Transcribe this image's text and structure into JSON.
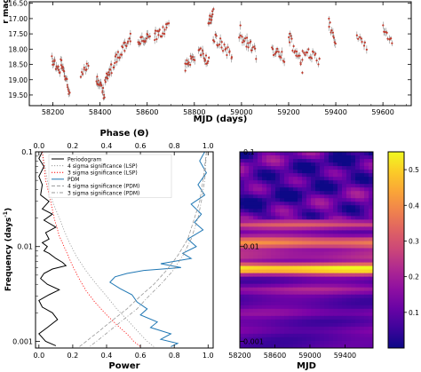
{
  "chart_data": [
    {
      "type": "scatter",
      "xlabel": "MJD (days)",
      "ylabel": "r mag",
      "xlim": [
        58100,
        59720
      ],
      "ylim": [
        19.85,
        16.45
      ],
      "y_inverted": true,
      "grid": false,
      "xticks": [
        58200,
        58400,
        58600,
        58800,
        59000,
        59200,
        59400,
        59600
      ],
      "yticks": [
        16.5,
        17.0,
        17.5,
        18.0,
        18.5,
        19.0,
        19.5
      ],
      "ytick_labels": [
        "16.50",
        "17.00",
        "17.50",
        "18.00",
        "18.50",
        "19.00",
        "19.50"
      ],
      "marker_color": "#c0392b",
      "segments": [
        {
          "x0": 58195,
          "x1": 58230,
          "n": 14,
          "y0": 18.3,
          "y1": 18.8,
          "noise": 0.35
        },
        {
          "x0": 58232,
          "x1": 58270,
          "n": 20,
          "y0": 18.4,
          "y1": 19.4,
          "noise": 0.35
        },
        {
          "x0": 58320,
          "x1": 58350,
          "n": 9,
          "y0": 18.8,
          "y1": 18.5,
          "noise": 0.25
        },
        {
          "x0": 58385,
          "x1": 58420,
          "n": 18,
          "y0": 19.0,
          "y1": 19.5,
          "noise": 0.35
        },
        {
          "x0": 58420,
          "x1": 58450,
          "n": 14,
          "y0": 19.1,
          "y1": 18.6,
          "noise": 0.4
        },
        {
          "x0": 58455,
          "x1": 58530,
          "n": 24,
          "y0": 18.5,
          "y1": 17.6,
          "noise": 0.35
        },
        {
          "x0": 58560,
          "x1": 58610,
          "n": 16,
          "y0": 17.8,
          "y1": 17.6,
          "noise": 0.3
        },
        {
          "x0": 58630,
          "x1": 58690,
          "n": 18,
          "y0": 17.6,
          "y1": 17.3,
          "noise": 0.35
        },
        {
          "x0": 58760,
          "x1": 58800,
          "n": 14,
          "y0": 18.6,
          "y1": 18.2,
          "noise": 0.35
        },
        {
          "x0": 58820,
          "x1": 58860,
          "n": 16,
          "y0": 18.0,
          "y1": 18.4,
          "noise": 0.35
        },
        {
          "x0": 58860,
          "x1": 58880,
          "n": 14,
          "y0": 17.2,
          "y1": 16.8,
          "noise": 0.4
        },
        {
          "x0": 58880,
          "x1": 58960,
          "n": 20,
          "y0": 17.6,
          "y1": 18.2,
          "noise": 0.35
        },
        {
          "x0": 58990,
          "x1": 59060,
          "n": 20,
          "y0": 17.4,
          "y1": 18.2,
          "noise": 0.45
        },
        {
          "x0": 59130,
          "x1": 59180,
          "n": 14,
          "y0": 18.0,
          "y1": 18.3,
          "noise": 0.35
        },
        {
          "x0": 59200,
          "x1": 59260,
          "n": 18,
          "y0": 17.6,
          "y1": 18.6,
          "noise": 0.45
        },
        {
          "x0": 59260,
          "x1": 59330,
          "n": 16,
          "y0": 18.0,
          "y1": 18.4,
          "noise": 0.35
        },
        {
          "x0": 59370,
          "x1": 59400,
          "n": 10,
          "y0": 17.1,
          "y1": 17.8,
          "noise": 0.3
        },
        {
          "x0": 59490,
          "x1": 59530,
          "n": 8,
          "y0": 17.6,
          "y1": 17.9,
          "noise": 0.25
        },
        {
          "x0": 59600,
          "x1": 59640,
          "n": 10,
          "y0": 17.3,
          "y1": 17.8,
          "noise": 0.3
        }
      ]
    },
    {
      "type": "line",
      "xlabel": "Power",
      "ylabel": "Frequency (days$^{-1}$)",
      "ylabel_main": "Frequency (days",
      "ylabel_sup": "-1",
      "ylabel_close": ")",
      "x2label": "Phase (Θ)",
      "xlim": [
        -0.02,
        1.03
      ],
      "ylim": [
        0.00085,
        0.1
      ],
      "yscale": "log",
      "xticks": [
        0.0,
        0.2,
        0.4,
        0.6,
        0.8,
        1.0
      ],
      "xtick_labels": [
        "0.0",
        "0.2",
        "0.4",
        "0.6",
        "0.8",
        "1.0"
      ],
      "yticks": [
        0.1,
        0.01,
        0.001
      ],
      "ytick_labels": [
        "0.1",
        "0.01",
        "0.001"
      ],
      "legend_position": "top",
      "series": [
        {
          "name": "Periodogram",
          "color": "#000000",
          "style": "solid",
          "key": "periodogram"
        },
        {
          "name": "4 sigma significance (LSP)",
          "color": "#999999",
          "style": "dotted",
          "key": "lsp4"
        },
        {
          "name": "3 sigma significance (LSP)",
          "color": "#ff0000",
          "style": "dotted",
          "key": "lsp3"
        },
        {
          "name": "PDM",
          "color": "#1f77b4",
          "style": "solid",
          "key": "pdm"
        },
        {
          "name": "4 sigma significance (PDM)",
          "color": "#999999",
          "style": "dashed",
          "key": "pdm4"
        },
        {
          "name": "3 sigma significance (PDM)",
          "color": "#999999",
          "style": "dashdot",
          "key": "pdm3"
        }
      ],
      "curves": {
        "periodogram": [
          [
            0.02,
            0.1
          ],
          [
            0.0,
            0.085
          ],
          [
            0.03,
            0.07
          ],
          [
            0.0,
            0.055
          ],
          [
            0.02,
            0.045
          ],
          [
            0.01,
            0.035
          ],
          [
            0.06,
            0.03
          ],
          [
            0.02,
            0.025
          ],
          [
            0.08,
            0.022
          ],
          [
            0.03,
            0.019
          ],
          [
            0.1,
            0.016
          ],
          [
            0.04,
            0.014
          ],
          [
            0.06,
            0.012
          ],
          [
            0.02,
            0.011
          ],
          [
            0.05,
            0.01
          ],
          [
            0.03,
            0.009
          ],
          [
            0.06,
            0.0085
          ],
          [
            0.1,
            0.0075
          ],
          [
            0.14,
            0.0068
          ],
          [
            0.16,
            0.0063
          ],
          [
            0.08,
            0.0058
          ],
          [
            0.03,
            0.0052
          ],
          [
            0.01,
            0.0046
          ],
          [
            0.05,
            0.004
          ],
          [
            0.12,
            0.0035
          ],
          [
            0.06,
            0.0031
          ],
          [
            0.0,
            0.0027
          ],
          [
            0.02,
            0.0023
          ],
          [
            0.08,
            0.002
          ],
          [
            0.11,
            0.0017
          ],
          [
            0.05,
            0.0014
          ],
          [
            0.0,
            0.0012
          ],
          [
            0.04,
            0.001
          ],
          [
            0.1,
            0.0009
          ]
        ],
        "lsp4": [
          [
            0.02,
            0.1
          ],
          [
            0.05,
            0.05
          ],
          [
            0.08,
            0.03
          ],
          [
            0.12,
            0.02
          ],
          [
            0.17,
            0.012
          ],
          [
            0.22,
            0.008
          ],
          [
            0.28,
            0.0055
          ],
          [
            0.34,
            0.004
          ],
          [
            0.4,
            0.003
          ],
          [
            0.46,
            0.0022
          ],
          [
            0.52,
            0.0017
          ],
          [
            0.58,
            0.0013
          ],
          [
            0.64,
            0.001
          ],
          [
            0.68,
            0.00088
          ]
        ],
        "lsp3": [
          [
            0.02,
            0.1
          ],
          [
            0.04,
            0.05
          ],
          [
            0.07,
            0.03
          ],
          [
            0.09,
            0.02
          ],
          [
            0.12,
            0.013
          ],
          [
            0.16,
            0.009
          ],
          [
            0.2,
            0.0062
          ],
          [
            0.24,
            0.0045
          ],
          [
            0.28,
            0.0034
          ],
          [
            0.33,
            0.0026
          ],
          [
            0.4,
            0.0019
          ],
          [
            0.46,
            0.0015
          ],
          [
            0.52,
            0.0012
          ],
          [
            0.56,
            0.001
          ],
          [
            0.6,
            0.00088
          ]
        ],
        "pdm": [
          [
            0.98,
            0.1
          ],
          [
            0.95,
            0.08
          ],
          [
            0.99,
            0.06
          ],
          [
            0.94,
            0.045
          ],
          [
            0.98,
            0.035
          ],
          [
            0.9,
            0.028
          ],
          [
            0.96,
            0.022
          ],
          [
            0.92,
            0.018
          ],
          [
            0.97,
            0.015
          ],
          [
            0.88,
            0.012
          ],
          [
            0.93,
            0.01
          ],
          [
            0.85,
            0.0085
          ],
          [
            0.9,
            0.0075
          ],
          [
            0.72,
            0.0066
          ],
          [
            0.84,
            0.006
          ],
          [
            0.62,
            0.0056
          ],
          [
            0.52,
            0.0052
          ],
          [
            0.45,
            0.0048
          ],
          [
            0.42,
            0.0042
          ],
          [
            0.48,
            0.0036
          ],
          [
            0.55,
            0.0031
          ],
          [
            0.58,
            0.0026
          ],
          [
            0.64,
            0.0022
          ],
          [
            0.6,
            0.0019
          ],
          [
            0.7,
            0.0016
          ],
          [
            0.66,
            0.0014
          ],
          [
            0.78,
            0.0012
          ],
          [
            0.72,
            0.00105
          ],
          [
            0.82,
            0.00095
          ],
          [
            0.78,
            0.00088
          ]
        ],
        "pdm4": [
          [
            0.99,
            0.1
          ],
          [
            0.97,
            0.05
          ],
          [
            0.95,
            0.03
          ],
          [
            0.92,
            0.02
          ],
          [
            0.88,
            0.012
          ],
          [
            0.82,
            0.008
          ],
          [
            0.75,
            0.0055
          ],
          [
            0.68,
            0.004
          ],
          [
            0.6,
            0.003
          ],
          [
            0.52,
            0.0022
          ],
          [
            0.44,
            0.0017
          ],
          [
            0.36,
            0.0013
          ],
          [
            0.28,
            0.001
          ],
          [
            0.24,
            0.00088
          ]
        ],
        "pdm3": [
          [
            0.99,
            0.1
          ],
          [
            0.98,
            0.05
          ],
          [
            0.96,
            0.03
          ],
          [
            0.94,
            0.02
          ],
          [
            0.9,
            0.012
          ],
          [
            0.85,
            0.008
          ],
          [
            0.79,
            0.0055
          ],
          [
            0.72,
            0.004
          ],
          [
            0.65,
            0.003
          ],
          [
            0.58,
            0.0022
          ],
          [
            0.5,
            0.0017
          ],
          [
            0.42,
            0.0013
          ],
          [
            0.34,
            0.001
          ],
          [
            0.3,
            0.00088
          ]
        ]
      }
    },
    {
      "type": "heatmap",
      "xlabel": "MJD",
      "xlim": [
        58200,
        59720
      ],
      "ylim": [
        0.00085,
        0.1
      ],
      "yscale": "log",
      "xticks": [
        58200,
        58600,
        59000,
        59400
      ],
      "yticks": [
        0.1,
        0.01,
        0.001
      ],
      "ytick_labels": [
        "0.1",
        "0.01",
        "0.001"
      ],
      "colormap": "plasma",
      "colorbar_range": [
        0.0,
        0.55
      ],
      "colorbar_ticks": [
        0.1,
        0.2,
        0.3,
        0.4,
        0.5
      ],
      "colorbar_tick_labels": [
        "0.1",
        "0.2",
        "0.3",
        "0.4",
        "0.5"
      ],
      "bands": [
        {
          "freq": 0.0058,
          "width": 0.06,
          "level": 0.55
        },
        {
          "freq": 0.011,
          "width": 0.07,
          "level": 0.38
        },
        {
          "freq": 0.017,
          "width": 0.05,
          "level": 0.3
        },
        {
          "freq": 0.008,
          "width": 0.05,
          "level": 0.22
        },
        {
          "freq": 0.0035,
          "width": 0.05,
          "level": 0.2
        },
        {
          "freq": 0.002,
          "width": 0.05,
          "level": 0.15
        },
        {
          "freq": 0.0013,
          "width": 0.05,
          "level": 0.12
        }
      ],
      "background_level": 0.08,
      "high_freq_texture": true
    }
  ]
}
